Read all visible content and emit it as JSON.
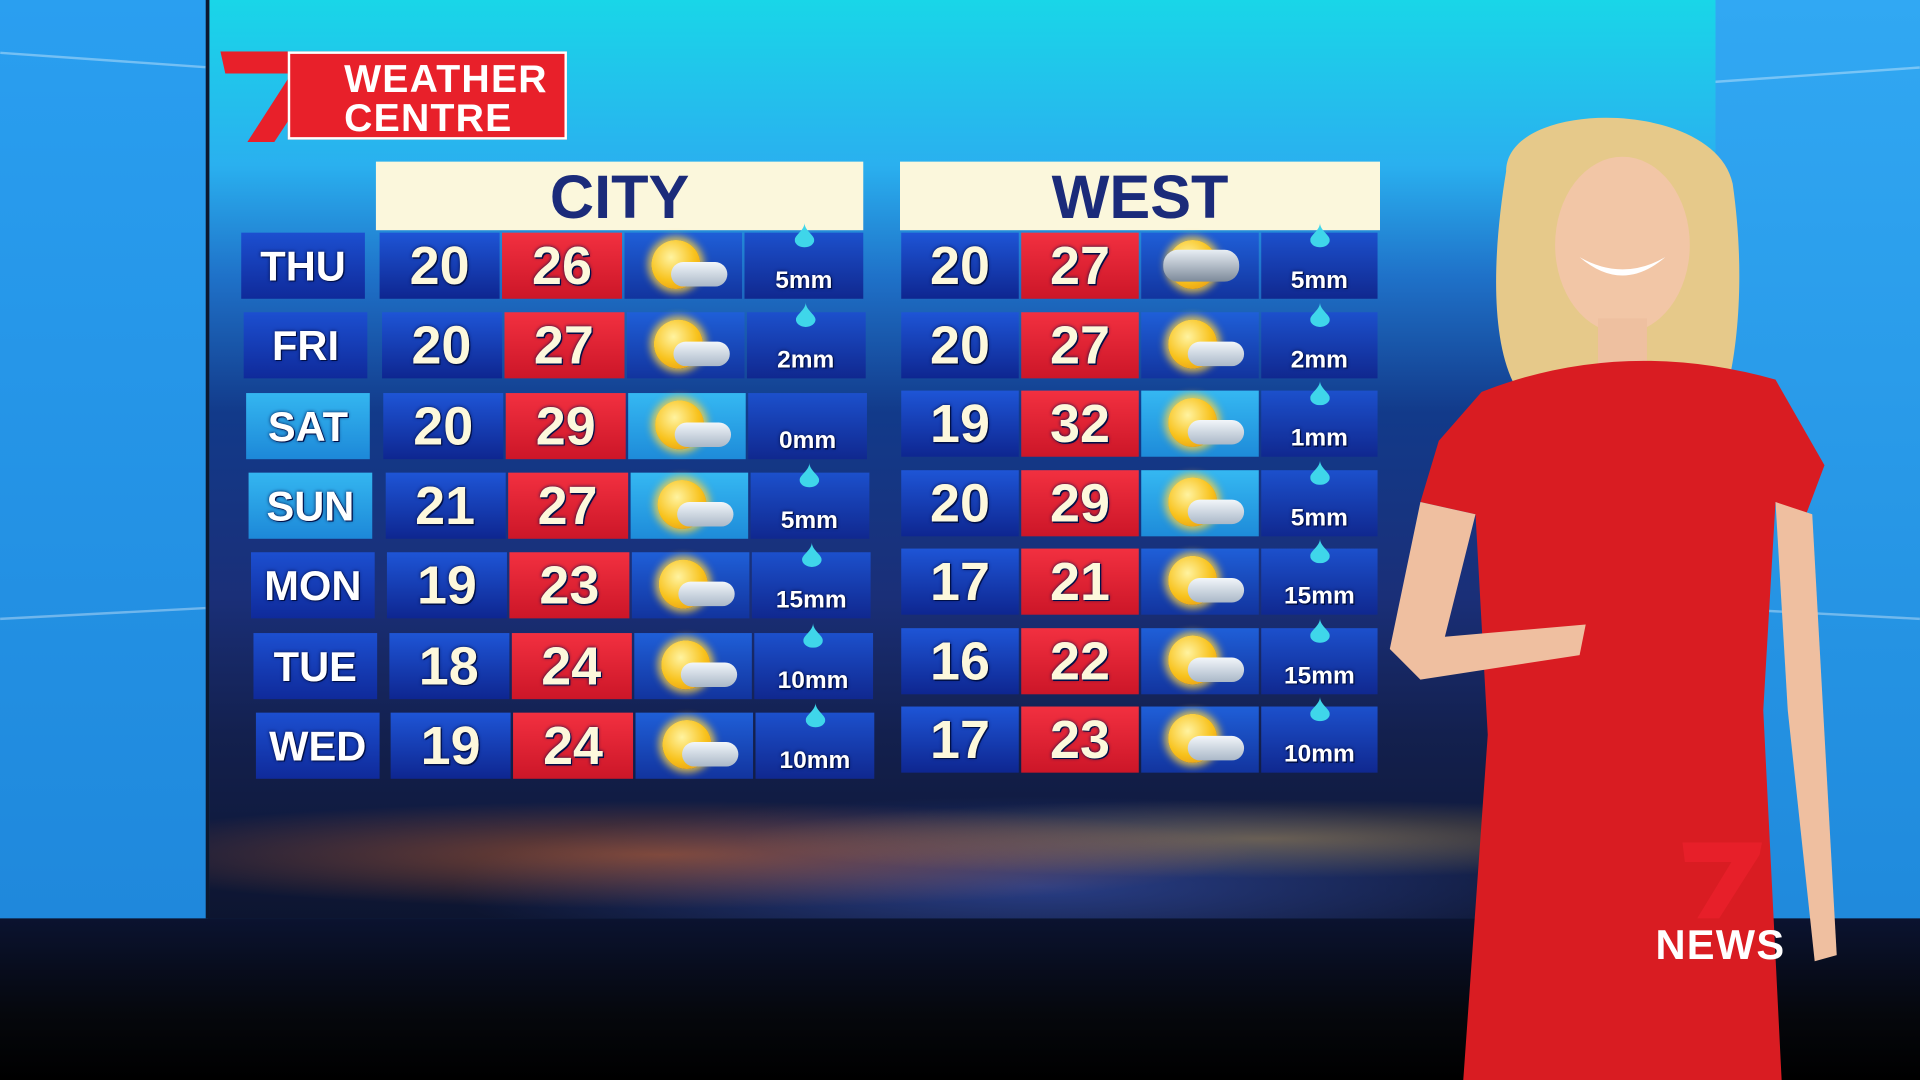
{
  "branding": {
    "network": "7",
    "logo_text_line1": "WEATHER",
    "logo_text_line2": "CENTRE",
    "corner_logo": "7NEWS",
    "corner_text": "NEWS"
  },
  "colors": {
    "max_temp": "#e8202a",
    "min_temp": "#1a3fbf",
    "header_bg": "#fbf7dc",
    "header_text": "#1b2b7a"
  },
  "regions": [
    {
      "name": "CITY",
      "rows": [
        {
          "day": "THU",
          "min": "20",
          "max": "26",
          "icon": "sun-cloud-icon",
          "rain": "5mm"
        },
        {
          "day": "FRI",
          "min": "20",
          "max": "27",
          "icon": "sun-cloud-icon",
          "rain": "2mm"
        },
        {
          "day": "SAT",
          "min": "20",
          "max": "29",
          "icon": "sun-cloud-icon",
          "rain": "0mm"
        },
        {
          "day": "SUN",
          "min": "21",
          "max": "27",
          "icon": "sun-cloud-icon",
          "rain": "5mm"
        },
        {
          "day": "MON",
          "min": "19",
          "max": "23",
          "icon": "sun-cloud-icon",
          "rain": "15mm"
        },
        {
          "day": "TUE",
          "min": "18",
          "max": "24",
          "icon": "sun-cloud-icon",
          "rain": "10mm"
        },
        {
          "day": "WED",
          "min": "19",
          "max": "24",
          "icon": "sun-cloud-icon",
          "rain": "10mm"
        }
      ]
    },
    {
      "name": "WEST",
      "rows": [
        {
          "min": "20",
          "max": "27",
          "icon": "storm-cloud-icon",
          "rain": "5mm"
        },
        {
          "min": "20",
          "max": "27",
          "icon": "sun-cloud-icon",
          "rain": "2mm"
        },
        {
          "min": "19",
          "max": "32",
          "icon": "sun-cloud-icon",
          "rain": "1mm"
        },
        {
          "min": "20",
          "max": "29",
          "icon": "sun-cloud-icon",
          "rain": "5mm"
        },
        {
          "min": "17",
          "max": "21",
          "icon": "sun-cloud-icon",
          "rain": "15mm"
        },
        {
          "min": "16",
          "max": "22",
          "icon": "sun-cloud-icon",
          "rain": "15mm"
        },
        {
          "min": "17",
          "max": "23",
          "icon": "sun-cloud-icon",
          "rain": "10mm"
        }
      ]
    }
  ]
}
